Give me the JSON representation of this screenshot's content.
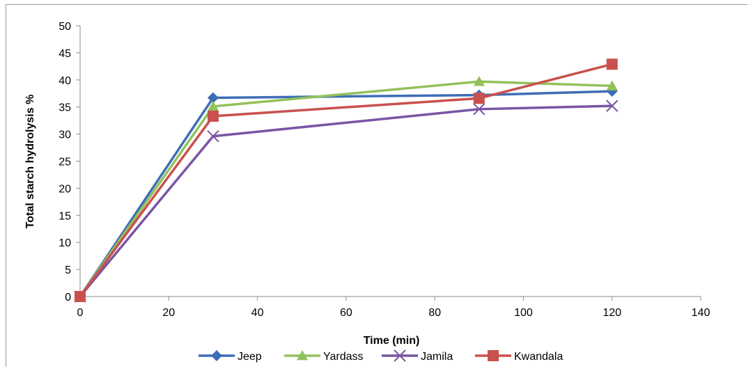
{
  "chart_data": {
    "type": "line",
    "title": "",
    "xlabel": "Time (min)",
    "ylabel": "Total starch hydrolysis %",
    "xlim": [
      0,
      140
    ],
    "ylim": [
      0,
      50
    ],
    "xticks": [
      0,
      20,
      40,
      60,
      80,
      100,
      120,
      140
    ],
    "yticks": [
      0,
      5,
      10,
      15,
      20,
      25,
      30,
      35,
      40,
      45,
      50
    ],
    "grid": false,
    "legend_position": "bottom",
    "x": [
      0,
      30,
      90,
      120
    ],
    "series": [
      {
        "name": "Jeep",
        "values": [
          0,
          36.7,
          37.2,
          37.9
        ],
        "color": "#3d6eb5",
        "marker": "diamond"
      },
      {
        "name": "Yardass",
        "values": [
          0,
          35.1,
          39.7,
          38.9
        ],
        "color": "#93c15a",
        "marker": "triangle"
      },
      {
        "name": "Jamila",
        "values": [
          0,
          29.6,
          34.6,
          35.2
        ],
        "color": "#7a55a4",
        "marker": "x"
      },
      {
        "name": "Kwandala",
        "values": [
          0,
          33.3,
          36.6,
          42.9
        ],
        "color": "#c9514d",
        "marker": "square"
      }
    ]
  }
}
